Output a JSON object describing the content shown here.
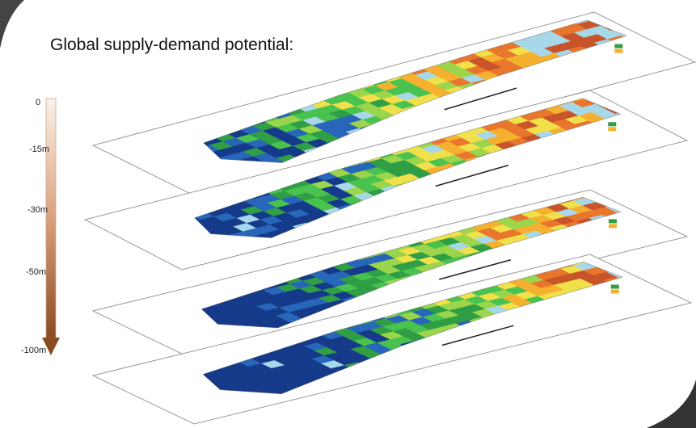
{
  "header": {
    "title": "Global supply-demand potential:"
  },
  "depth_axis": {
    "labels": [
      "0",
      "-15m",
      "-30m",
      "-50m",
      "-100m"
    ]
  }
}
